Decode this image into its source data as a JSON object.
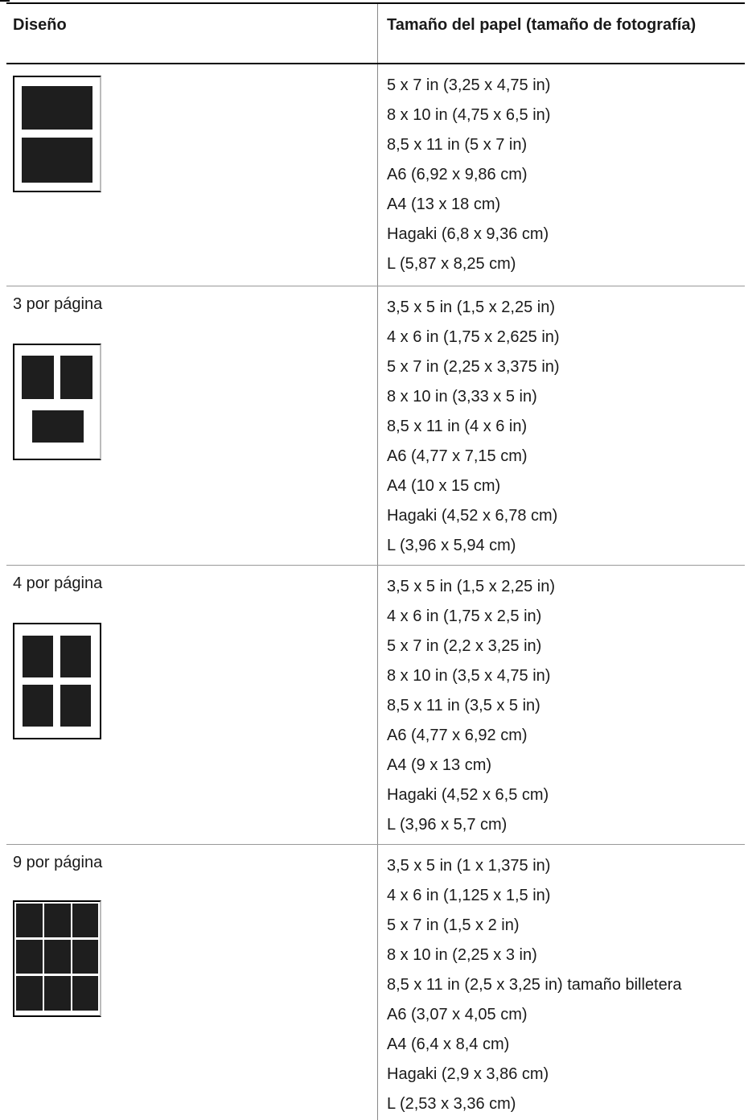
{
  "table": {
    "header": {
      "layout": "Diseño",
      "paper_size": "Tamaño del papel (tamaño de fotografía)"
    },
    "rows": [
      {
        "layout_name": "",
        "layout_icon": "2-per-page-layout-icon",
        "sizes": [
          "5 x 7 in (3,25 x 4,75 in)",
          "8 x 10 in (4,75 x 6,5 in)",
          "8,5 x 11 in (5 x 7 in)",
          "A6 (6,92 x 9,86 cm)",
          "A4 (13 x 18 cm)",
          "Hagaki (6,8 x 9,36 cm)",
          "L (5,87 x 8,25 cm)"
        ]
      },
      {
        "layout_name": "3 por página",
        "layout_icon": "3-per-page-layout-icon",
        "sizes": [
          "3,5 x 5 in (1,5 x 2,25 in)",
          "4 x 6 in (1,75 x 2,625 in)",
          "5 x 7 in (2,25 x 3,375 in)",
          "8 x 10 in (3,33 x 5 in)",
          "8,5 x 11 in (4 x 6 in)",
          "A6 (4,77 x 7,15 cm)",
          "A4 (10 x 15 cm)",
          "Hagaki (4,52 x 6,78 cm)",
          "L (3,96 x 5,94 cm)"
        ]
      },
      {
        "layout_name": "4 por página",
        "layout_icon": "4-per-page-layout-icon",
        "sizes": [
          "3,5 x 5 in (1,5 x 2,25 in)",
          "4 x 6 in (1,75 x 2,5 in)",
          "5 x 7 in (2,2 x 3,25 in)",
          "8 x 10 in (3,5 x 4,75 in)",
          "8,5 x 11 in (3,5 x 5  in)",
          "A6 (4,77 x 6,92 cm)",
          "A4 (9 x 13 cm)",
          "Hagaki (4,52 x 6,5 cm)",
          "L (3,96 x 5,7 cm)"
        ]
      },
      {
        "layout_name": "9 por página",
        "layout_icon": "9-per-page-layout-icon",
        "sizes": [
          "3,5 x 5 in (1 x 1,375 in)",
          "4 x 6 in (1,125 x 1,5 in)",
          "5 x 7 in (1,5 x 2 in)",
          "8 x 10 in (2,25 x 3 in)",
          "8,5 x 11 in (2,5 x 3,25 in) tamaño billetera",
          "A6 (3,07 x 4,05 cm)",
          "A4 (6,4 x 8,4 cm)",
          "Hagaki (2,9 x 3,86 cm)",
          "L (2,53 x 3,36 cm)"
        ]
      }
    ]
  }
}
